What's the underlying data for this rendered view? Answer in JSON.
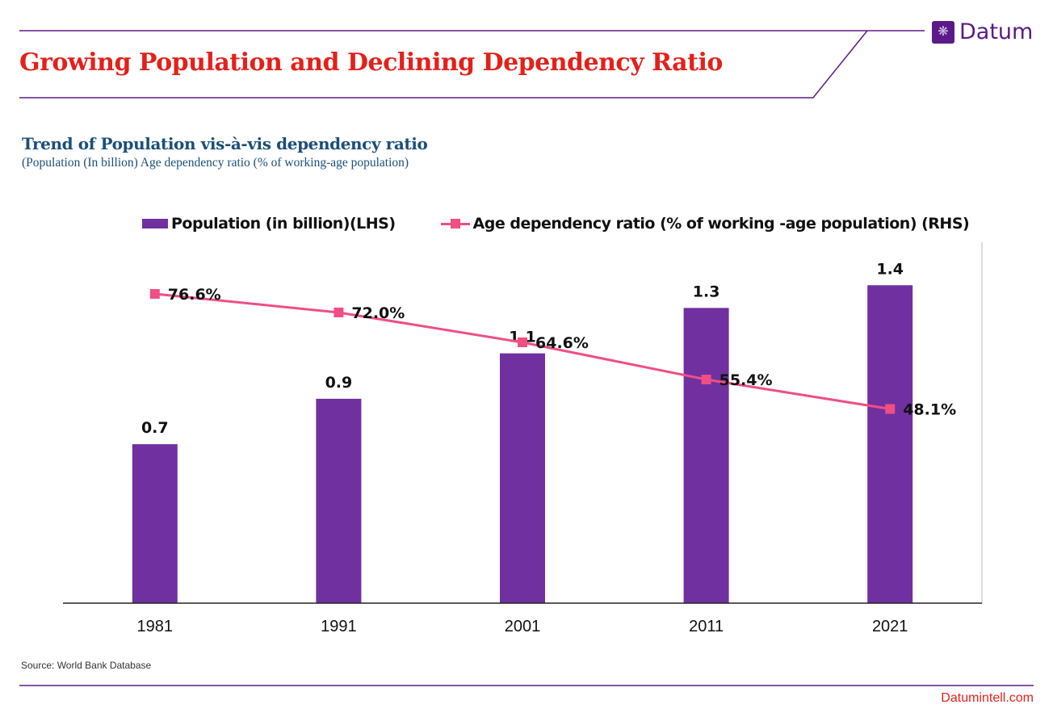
{
  "header": {
    "title": "Growing Population and Declining Dependency Ratio",
    "logo_text": "Datum",
    "logo_icon": "network-globe-icon"
  },
  "chart_heading": {
    "title": "Trend of Population vis-à-vis dependency ratio",
    "subtitle": "(Population (In billion) Age dependency ratio (% of working-age population)"
  },
  "footer": {
    "source": "Source:  World Bank Database",
    "site": "Datumintell.com"
  },
  "colors": {
    "title": "#e3211b",
    "bars": "#7030a0",
    "line": "#ef4f82",
    "accent": "#5b1a87"
  },
  "chart_data": {
    "type": "bar+line",
    "categories": [
      "1981",
      "1991",
      "2001",
      "2011",
      "2021"
    ],
    "series": [
      {
        "name": "Population (in billion)(LHS)",
        "type": "bar",
        "axis": "left",
        "values": [
          0.7,
          0.9,
          1.1,
          1.3,
          1.4
        ],
        "labels": [
          "0.7",
          "0.9",
          "1.1",
          "1.3",
          "1.4"
        ]
      },
      {
        "name": "Age dependency ratio (% of working -age population) (RHS)",
        "type": "line",
        "axis": "right",
        "values": [
          76.6,
          72.0,
          64.6,
          55.4,
          48.1
        ],
        "labels": [
          "76.6%",
          "72.0%",
          "64.6%",
          "55.4%",
          "48.1%"
        ]
      }
    ],
    "ylim_left": [
      0,
      1.6
    ],
    "ylim_right": [
      0,
      90
    ],
    "grid": false,
    "legend": "top"
  }
}
